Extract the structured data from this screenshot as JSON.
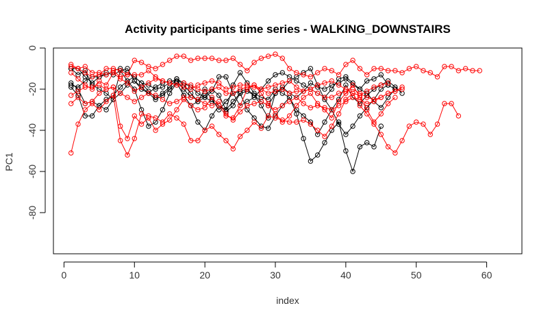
{
  "chart_data": {
    "type": "line",
    "title": "Activity participants time series -  WALKING_DOWNSTAIRS",
    "xlabel": "index",
    "ylabel": "PC1",
    "xlim": [
      -1.5,
      65
    ],
    "ylim": [
      -100,
      0
    ],
    "xticks": [
      0,
      10,
      20,
      30,
      40,
      50,
      60
    ],
    "yticks": [
      0,
      -20,
      -40,
      -60,
      -80
    ],
    "grid": false,
    "legend": "none",
    "marker": "open-circle",
    "colors": {
      "black": "#000000",
      "red": "#ff0000"
    },
    "series": [
      {
        "color": "#000000",
        "values": [
          -17,
          -20,
          -27,
          -26,
          -28,
          -30,
          -25,
          -11,
          -16,
          -20,
          -30,
          -38,
          -36,
          -30,
          -22,
          -17,
          -23,
          -28,
          -36,
          -40,
          -33,
          -28,
          -30,
          -18,
          -12,
          -17,
          -22,
          -24,
          -25,
          -20,
          -22,
          -24,
          -30,
          -33,
          -36,
          -42,
          -36,
          -30,
          -25,
          -18,
          -24,
          -27,
          -23,
          -20,
          -18,
          -16,
          -19,
          -22
        ]
      },
      {
        "color": "#000000",
        "values": [
          -10,
          -13,
          -11,
          -18,
          -20,
          -22,
          -25,
          -22,
          -18,
          -16,
          -19,
          -22,
          -25,
          -23,
          -20,
          -17,
          -23,
          -28,
          -26,
          -20,
          -25,
          -30,
          -26,
          -22,
          -21,
          -20,
          -23,
          -26,
          -28,
          -22,
          -19,
          -22,
          -24,
          -21,
          -17,
          -19,
          -20,
          -18,
          -17,
          -15,
          -18,
          -20,
          -16,
          -15,
          -13,
          -18,
          -20
        ]
      },
      {
        "color": "#000000",
        "values": [
          -18,
          -19,
          -16,
          -14,
          -14,
          -12,
          -13,
          -11,
          -10,
          -16,
          -20,
          -22,
          -19,
          -17,
          -16,
          -16,
          -20,
          -24,
          -25,
          -23,
          -20,
          -23,
          -30,
          -26,
          -22,
          -21,
          -23,
          -28,
          -34,
          -22,
          -20,
          -16,
          -14,
          -12,
          -10,
          -18,
          -25,
          -30,
          -37,
          -42,
          -38,
          -33,
          -29,
          -25,
          -20,
          -18
        ]
      },
      {
        "color": "#000000",
        "values": [
          -19,
          -23,
          -33,
          -33,
          -28,
          -25,
          -23,
          -19,
          -16,
          -14,
          -17,
          -21,
          -24,
          -22,
          -19,
          -15,
          -17,
          -19,
          -22,
          -24,
          -26,
          -28,
          -31,
          -28,
          -22,
          -30,
          -34,
          -38,
          -39,
          -33,
          -28,
          -24,
          -32,
          -44,
          -55,
          -52,
          -46,
          -40,
          -36,
          -50,
          -60,
          -48,
          -46,
          -48,
          -38
        ]
      },
      {
        "color": "#000000",
        "values": [
          -10,
          -10,
          -14,
          -17,
          -14,
          -13,
          -11,
          -10,
          -12,
          -14,
          -17,
          -18,
          -20,
          -19,
          -17,
          -15,
          -18,
          -22,
          -26,
          -24,
          -21,
          -14,
          -14,
          -22,
          -28,
          -26,
          -24,
          -20,
          -16,
          -13,
          -12,
          -14,
          -16,
          -18,
          -20,
          -22,
          -24,
          -20,
          -15,
          -14,
          -17,
          -20,
          -22,
          -26,
          -29,
          -24,
          -20
        ]
      },
      {
        "color": "#ff0000",
        "values": [
          -51,
          -37,
          -30,
          -27,
          -30,
          -26,
          -23,
          -45,
          -52,
          -44,
          -32,
          -33,
          -34,
          -36,
          -32,
          -34,
          -37,
          -45,
          -45,
          -40,
          -38,
          -42,
          -45,
          -49,
          -43,
          -40,
          -36,
          -39,
          -33,
          -34,
          -35,
          -36,
          -36,
          -35,
          -37,
          -40,
          -43,
          -38,
          -32,
          -25,
          -22,
          -28,
          -32,
          -37,
          -42,
          -48,
          -51,
          -45,
          -38,
          -36,
          -37,
          -42,
          -37,
          -27,
          -27,
          -33
        ]
      },
      {
        "color": "#ff0000",
        "values": [
          -9,
          -10,
          -12,
          -14,
          -13,
          -10,
          -10,
          -11,
          -13,
          -6,
          -7,
          -9,
          -10,
          -8,
          -6,
          -4,
          -4,
          -6,
          -5,
          -5,
          -5,
          -6,
          -6,
          -5,
          -8,
          -11,
          -7,
          -5,
          -4,
          -3,
          -5,
          -10,
          -12,
          -13,
          -14,
          -12,
          -10,
          -11,
          -13,
          -8,
          -6,
          -10,
          -13,
          -10,
          -10,
          -11,
          -11,
          -12,
          -10,
          -9,
          -11,
          -12,
          -14,
          -9,
          -9,
          -11,
          -10,
          -11,
          -11
        ]
      },
      {
        "color": "#ff0000",
        "values": [
          -8,
          -10,
          -9,
          -12,
          -12,
          -13,
          -11,
          -14,
          -13,
          -13,
          -13,
          -11,
          -14,
          -16,
          -17,
          -18,
          -17,
          -18,
          -20,
          -21,
          -20,
          -19,
          -22,
          -22,
          -20,
          -19,
          -18,
          -20,
          -22,
          -21,
          -20,
          -22,
          -21,
          -21,
          -20,
          -22,
          -24,
          -24,
          -22,
          -21,
          -20,
          -22,
          -24,
          -25,
          -24,
          -22,
          -21,
          -19
        ]
      },
      {
        "color": "#ff0000",
        "values": [
          -27,
          -24,
          -27,
          -26,
          -22,
          -20,
          -19,
          -38,
          -44,
          -33,
          -37,
          -34,
          -40,
          -37,
          -35,
          -30,
          -25,
          -28,
          -30,
          -29,
          -24,
          -28,
          -33,
          -34,
          -28,
          -20,
          -18,
          -22,
          -27,
          -32,
          -36,
          -33,
          -28,
          -24,
          -22,
          -27,
          -30,
          -34,
          -26,
          -22,
          -18,
          -24,
          -30,
          -36,
          -32,
          -27,
          -24
        ]
      },
      {
        "color": "#ff0000",
        "values": [
          -23,
          -21,
          -19,
          -19,
          -18,
          -20,
          -19,
          -22,
          -24,
          -26,
          -24,
          -22,
          -23,
          -25,
          -27,
          -26,
          -24,
          -24,
          -25,
          -27,
          -28,
          -26,
          -32,
          -35,
          -31,
          -28,
          -27,
          -26,
          -28,
          -30,
          -28,
          -26,
          -24,
          -27,
          -29,
          -28,
          -29,
          -30,
          -28,
          -26,
          -24,
          -25,
          -27,
          -26,
          -24,
          -22,
          -21,
          -20
        ]
      },
      {
        "color": "#ff0000",
        "values": [
          -12,
          -15,
          -18,
          -20,
          -16,
          -18,
          -12,
          -15,
          -17,
          -21,
          -19,
          -17,
          -15,
          -16,
          -17,
          -18,
          -19,
          -20,
          -18,
          -17,
          -16,
          -17,
          -20,
          -19,
          -18,
          -18,
          -19,
          -20,
          -19,
          -18,
          -17,
          -16,
          -19,
          -21,
          -20,
          -18,
          -17,
          -16,
          -18,
          -20,
          -22,
          -23,
          -21,
          -19,
          -18,
          -17
        ]
      }
    ]
  }
}
